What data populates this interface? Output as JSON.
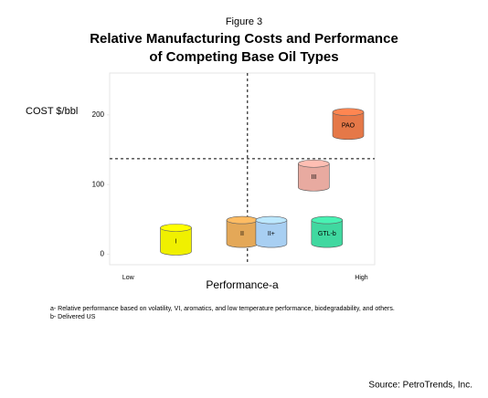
{
  "chart_data": {
    "type": "scatter",
    "subtitle": "Figure 3",
    "title": [
      "Relative Manufacturing Costs and Performance",
      "of Competing Base Oil Types"
    ],
    "ylabel": "COST $/bbl",
    "xlabel": "Performance-a",
    "ylim": [
      -15,
      260
    ],
    "yticks": [
      0,
      100,
      200
    ],
    "xlim": [
      0,
      10
    ],
    "xticks": [
      {
        "value": 0.7,
        "label": "Low"
      },
      {
        "value": 9.5,
        "label": "High"
      }
    ],
    "hline": 137,
    "vline": 5.2,
    "points": [
      {
        "name": "I",
        "x": 2.5,
        "y": 21,
        "color": "#f0f000"
      },
      {
        "name": "II",
        "x": 5.0,
        "y": 32,
        "color": "#e4a858"
      },
      {
        "name": "II+",
        "x": 6.1,
        "y": 32,
        "color": "#a8cff2"
      },
      {
        "name": "III",
        "x": 7.7,
        "y": 113,
        "color": "#e8aaa0"
      },
      {
        "name": "GTL-b",
        "x": 8.2,
        "y": 32,
        "color": "#40d8a0"
      },
      {
        "name": "PAO",
        "x": 9.0,
        "y": 187,
        "color": "#e57848"
      }
    ],
    "footnotes": [
      "a- Relative performance based on volatility, VI, aromatics, and low temperature performance, biodegradability, and others.",
      "b- Delivered US"
    ],
    "source": "Source: PetroTrends, Inc."
  }
}
